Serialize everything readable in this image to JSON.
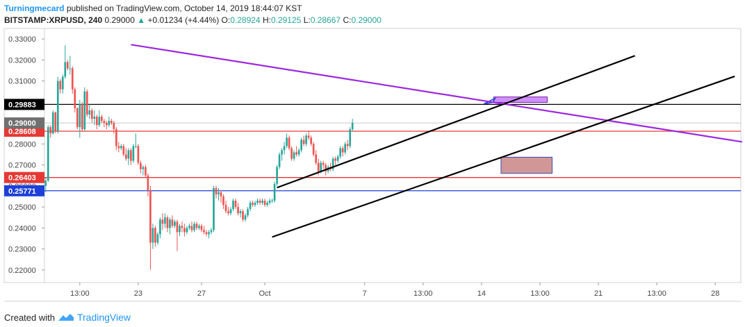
{
  "header": {
    "author": "Turningmecard",
    "published": "published on TradingView.com, October 14, 2019 18:44:07 KST",
    "symbol": "BITSTAMP:XRPUSD, 240",
    "last": "0.29000",
    "change_arrow": "▲",
    "change": "+0.01234 (+4.44%)",
    "o_label": "O:",
    "o_value": "0.28924",
    "h_label": "H:",
    "h_value": "0.29125",
    "l_label": "L:",
    "l_value": "0.28667",
    "c_label": "C:",
    "c_value": "0.29000"
  },
  "footer": {
    "created_with": "Created with",
    "brand": "TradingView",
    "logo_icon": "tradingview-logo-icon"
  },
  "colors": {
    "up": "#26a69a",
    "down": "#ef5350",
    "support_red": "#e53935",
    "support_blue": "#1e3fd8",
    "resistance_black": "#000000",
    "trendline_purple": "#9c27e0",
    "zone_purple": "#c77dff",
    "zone_red": "#c98585",
    "current_price": "#707070"
  },
  "chart_data": {
    "type": "candlestick",
    "y_axis": {
      "min": 0.214,
      "max": 0.335,
      "side": "left",
      "ticks": [
        "0.33000",
        "0.32000",
        "0.31000",
        "0.30000",
        "0.29000",
        "0.28000",
        "0.27000",
        "0.26000",
        "0.25000",
        "0.24000",
        "0.23000",
        "0.22000"
      ]
    },
    "x_axis": {
      "ticks": [
        {
          "label": "13:00",
          "bar": 14
        },
        {
          "label": "23",
          "bar": 38
        },
        {
          "label": "27",
          "bar": 64
        },
        {
          "label": "Oct",
          "bar": 90
        },
        {
          "label": "7",
          "bar": 131
        },
        {
          "label": "13:00",
          "bar": 155
        },
        {
          "label": "14",
          "bar": 179
        },
        {
          "label": "13:00",
          "bar": 203
        },
        {
          "label": "21",
          "bar": 227
        },
        {
          "label": "13:00",
          "bar": 251
        },
        {
          "label": "28",
          "bar": 275
        }
      ]
    },
    "bars_total": 286,
    "candles": [
      [
        0.26,
        0.264,
        0.257,
        0.2625
      ],
      [
        0.2625,
        0.289,
        0.262,
        0.288
      ],
      [
        0.288,
        0.289,
        0.283,
        0.285
      ],
      [
        0.285,
        0.296,
        0.2845,
        0.295
      ],
      [
        0.295,
        0.2955,
        0.285,
        0.286
      ],
      [
        0.286,
        0.312,
        0.285,
        0.31
      ],
      [
        0.31,
        0.311,
        0.304,
        0.306
      ],
      [
        0.306,
        0.313,
        0.304,
        0.312
      ],
      [
        0.312,
        0.327,
        0.311,
        0.319
      ],
      [
        0.319,
        0.32,
        0.315,
        0.316
      ],
      [
        0.316,
        0.322,
        0.313,
        0.316
      ],
      [
        0.316,
        0.317,
        0.304,
        0.306
      ],
      [
        0.306,
        0.307,
        0.295,
        0.297
      ],
      [
        0.297,
        0.2975,
        0.287,
        0.288
      ],
      [
        0.288,
        0.301,
        0.283,
        0.299
      ],
      [
        0.299,
        0.3,
        0.286,
        0.287
      ],
      [
        0.287,
        0.307,
        0.286,
        0.305
      ],
      [
        0.305,
        0.306,
        0.293,
        0.294
      ],
      [
        0.294,
        0.299,
        0.292,
        0.296
      ],
      [
        0.296,
        0.297,
        0.29,
        0.292
      ],
      [
        0.292,
        0.296,
        0.289,
        0.293
      ],
      [
        0.293,
        0.294,
        0.287,
        0.289
      ],
      [
        0.289,
        0.296,
        0.288,
        0.293
      ],
      [
        0.293,
        0.294,
        0.29,
        0.291
      ],
      [
        0.291,
        0.292,
        0.288,
        0.29
      ],
      [
        0.29,
        0.291,
        0.287,
        0.289
      ],
      [
        0.289,
        0.293,
        0.288,
        0.291
      ],
      [
        0.291,
        0.292,
        0.289,
        0.29
      ],
      [
        0.29,
        0.291,
        0.285,
        0.287
      ],
      [
        0.287,
        0.288,
        0.277,
        0.279
      ],
      [
        0.279,
        0.281,
        0.276,
        0.278
      ],
      [
        0.278,
        0.28,
        0.277,
        0.279
      ],
      [
        0.279,
        0.28,
        0.274,
        0.275
      ],
      [
        0.275,
        0.278,
        0.272,
        0.273
      ],
      [
        0.273,
        0.278,
        0.27,
        0.277
      ],
      [
        0.277,
        0.278,
        0.27,
        0.272
      ],
      [
        0.272,
        0.28,
        0.271,
        0.279
      ],
      [
        0.279,
        0.285,
        0.278,
        0.279
      ],
      [
        0.279,
        0.28,
        0.27,
        0.271
      ],
      [
        0.271,
        0.272,
        0.266,
        0.268
      ],
      [
        0.268,
        0.27,
        0.265,
        0.269
      ],
      [
        0.269,
        0.27,
        0.264,
        0.265
      ],
      [
        0.265,
        0.266,
        0.255,
        0.258
      ],
      [
        0.258,
        0.26,
        0.22,
        0.233
      ],
      [
        0.233,
        0.242,
        0.23,
        0.24
      ],
      [
        0.24,
        0.241,
        0.231,
        0.233
      ],
      [
        0.233,
        0.238,
        0.232,
        0.237
      ],
      [
        0.237,
        0.245,
        0.235,
        0.244
      ],
      [
        0.244,
        0.247,
        0.239,
        0.242
      ],
      [
        0.242,
        0.247,
        0.24,
        0.245
      ],
      [
        0.245,
        0.246,
        0.238,
        0.24
      ],
      [
        0.24,
        0.245,
        0.237,
        0.244
      ],
      [
        0.244,
        0.246,
        0.24,
        0.241
      ],
      [
        0.241,
        0.244,
        0.24,
        0.243
      ],
      [
        0.243,
        0.244,
        0.229,
        0.238
      ],
      [
        0.238,
        0.242,
        0.236,
        0.241
      ],
      [
        0.241,
        0.243,
        0.238,
        0.24
      ],
      [
        0.24,
        0.242,
        0.236,
        0.238
      ],
      [
        0.238,
        0.241,
        0.237,
        0.24
      ],
      [
        0.24,
        0.242,
        0.239,
        0.241
      ],
      [
        0.241,
        0.243,
        0.238,
        0.239
      ],
      [
        0.239,
        0.243,
        0.238,
        0.242
      ],
      [
        0.242,
        0.243,
        0.239,
        0.24
      ],
      [
        0.24,
        0.242,
        0.239,
        0.241
      ],
      [
        0.241,
        0.242,
        0.238,
        0.239
      ],
      [
        0.239,
        0.241,
        0.237,
        0.238
      ],
      [
        0.238,
        0.239,
        0.236,
        0.237
      ],
      [
        0.237,
        0.239,
        0.235,
        0.238
      ],
      [
        0.238,
        0.24,
        0.237,
        0.239
      ],
      [
        0.239,
        0.26,
        0.238,
        0.259
      ],
      [
        0.259,
        0.26,
        0.254,
        0.256
      ],
      [
        0.256,
        0.259,
        0.253,
        0.257
      ],
      [
        0.257,
        0.258,
        0.252,
        0.255
      ],
      [
        0.255,
        0.256,
        0.249,
        0.251
      ],
      [
        0.251,
        0.253,
        0.247,
        0.248
      ],
      [
        0.248,
        0.25,
        0.246,
        0.247
      ],
      [
        0.247,
        0.25,
        0.246,
        0.249
      ],
      [
        0.249,
        0.254,
        0.248,
        0.253
      ],
      [
        0.253,
        0.254,
        0.249,
        0.25
      ],
      [
        0.25,
        0.252,
        0.246,
        0.247
      ],
      [
        0.247,
        0.249,
        0.245,
        0.248
      ],
      [
        0.248,
        0.249,
        0.243,
        0.244
      ],
      [
        0.244,
        0.247,
        0.243,
        0.246
      ],
      [
        0.246,
        0.25,
        0.245,
        0.249
      ],
      [
        0.249,
        0.253,
        0.248,
        0.252
      ],
      [
        0.252,
        0.253,
        0.25,
        0.251
      ],
      [
        0.251,
        0.253,
        0.25,
        0.252
      ],
      [
        0.252,
        0.254,
        0.251,
        0.253
      ],
      [
        0.253,
        0.254,
        0.251,
        0.252
      ],
      [
        0.252,
        0.254,
        0.251,
        0.253
      ],
      [
        0.253,
        0.254,
        0.25,
        0.251
      ],
      [
        0.251,
        0.253,
        0.25,
        0.252
      ],
      [
        0.252,
        0.254,
        0.251,
        0.253
      ],
      [
        0.253,
        0.254,
        0.252,
        0.253
      ],
      [
        0.253,
        0.262,
        0.252,
        0.261
      ],
      [
        0.261,
        0.27,
        0.26,
        0.269
      ],
      [
        0.269,
        0.276,
        0.268,
        0.275
      ],
      [
        0.275,
        0.278,
        0.272,
        0.277
      ],
      [
        0.277,
        0.281,
        0.275,
        0.279
      ],
      [
        0.279,
        0.285,
        0.278,
        0.283
      ],
      [
        0.283,
        0.284,
        0.277,
        0.278
      ],
      [
        0.278,
        0.279,
        0.272,
        0.273
      ],
      [
        0.273,
        0.277,
        0.272,
        0.276
      ],
      [
        0.276,
        0.279,
        0.274,
        0.275
      ],
      [
        0.275,
        0.278,
        0.274,
        0.277
      ],
      [
        0.277,
        0.283,
        0.276,
        0.282
      ],
      [
        0.282,
        0.284,
        0.279,
        0.28
      ],
      [
        0.28,
        0.285,
        0.279,
        0.284
      ],
      [
        0.284,
        0.286,
        0.282,
        0.283
      ],
      [
        0.283,
        0.284,
        0.279,
        0.28
      ],
      [
        0.28,
        0.281,
        0.274,
        0.275
      ],
      [
        0.275,
        0.277,
        0.27,
        0.271
      ],
      [
        0.271,
        0.273,
        0.265,
        0.267
      ],
      [
        0.267,
        0.272,
        0.266,
        0.271
      ],
      [
        0.271,
        0.272,
        0.268,
        0.27
      ],
      [
        0.27,
        0.271,
        0.265,
        0.267
      ],
      [
        0.267,
        0.27,
        0.266,
        0.269
      ],
      [
        0.269,
        0.271,
        0.267,
        0.268
      ],
      [
        0.268,
        0.274,
        0.267,
        0.273
      ],
      [
        0.273,
        0.274,
        0.27,
        0.272
      ],
      [
        0.272,
        0.275,
        0.271,
        0.274
      ],
      [
        0.274,
        0.279,
        0.273,
        0.278
      ],
      [
        0.278,
        0.279,
        0.274,
        0.276
      ],
      [
        0.276,
        0.281,
        0.275,
        0.28
      ],
      [
        0.28,
        0.282,
        0.277,
        0.279
      ],
      [
        0.279,
        0.288,
        0.278,
        0.287
      ],
      [
        0.287,
        0.292,
        0.286,
        0.29
      ]
    ],
    "horizontal_lines": [
      {
        "label": "0.29883",
        "value": 0.29883,
        "color": "#000000"
      },
      {
        "label": "0.28608",
        "value": 0.28608,
        "color": "#e53935"
      },
      {
        "label": "0.26403",
        "value": 0.26403,
        "color": "#e53935"
      },
      {
        "label": "0.25771",
        "value": 0.25771,
        "color": "#1e3fd8"
      }
    ],
    "current_price": {
      "label": "0.29000",
      "value": 0.29
    },
    "trendlines": [
      {
        "color": "#9c27e0",
        "from": [
          35,
          0.3273
        ],
        "to": [
          286,
          0.281
        ]
      },
      {
        "color": "#000000",
        "from": [
          95,
          0.2592
        ],
        "to": [
          242,
          0.322
        ]
      },
      {
        "color": "#000000",
        "from": [
          93,
          0.2357
        ],
        "to": [
          283,
          0.3122
        ]
      }
    ],
    "zones": [
      {
        "color": "#c77dff",
        "from": [
          184,
          0.3024
        ],
        "to": [
          206,
          0.2998
        ]
      },
      {
        "color": "#c98585",
        "from": [
          187,
          0.2737
        ],
        "to": [
          208,
          0.266
        ]
      }
    ]
  }
}
